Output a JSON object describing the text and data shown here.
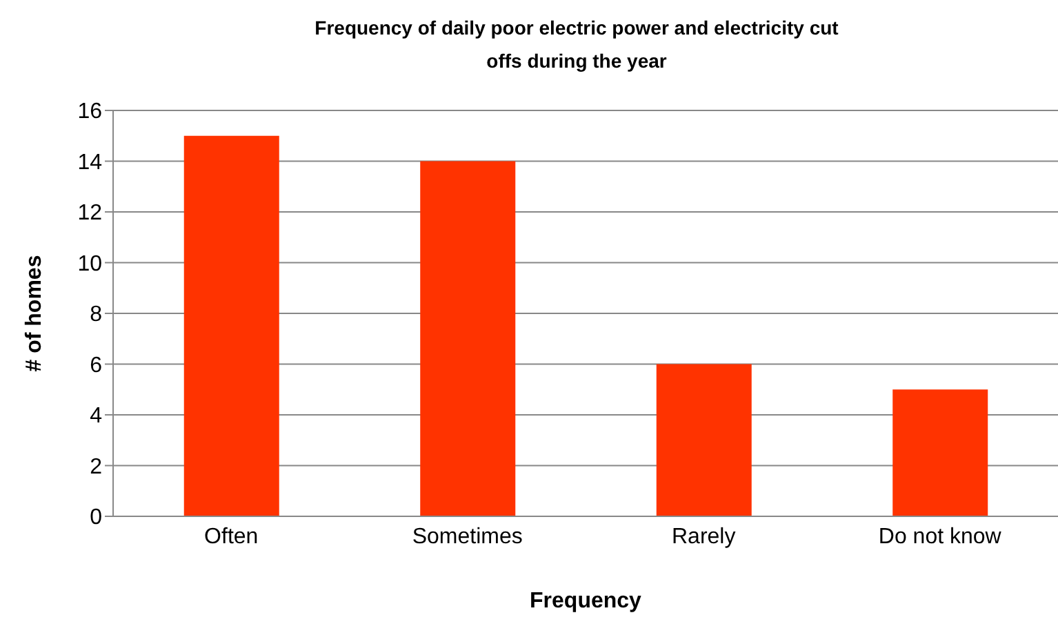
{
  "chart_data": {
    "type": "bar",
    "title": "Frequency of daily poor electric power and electricity cut offs during the year",
    "xlabel": "Frequency",
    "ylabel": "# of homes",
    "categories": [
      "Often",
      "Sometimes",
      "Rarely",
      "Do not know"
    ],
    "values": [
      15,
      14,
      6,
      5
    ],
    "color": "#ff3300",
    "ylim": [
      0,
      16
    ],
    "yticks": [
      0,
      2,
      4,
      6,
      8,
      10,
      12,
      14,
      16
    ],
    "grid": "y",
    "legend": false
  }
}
